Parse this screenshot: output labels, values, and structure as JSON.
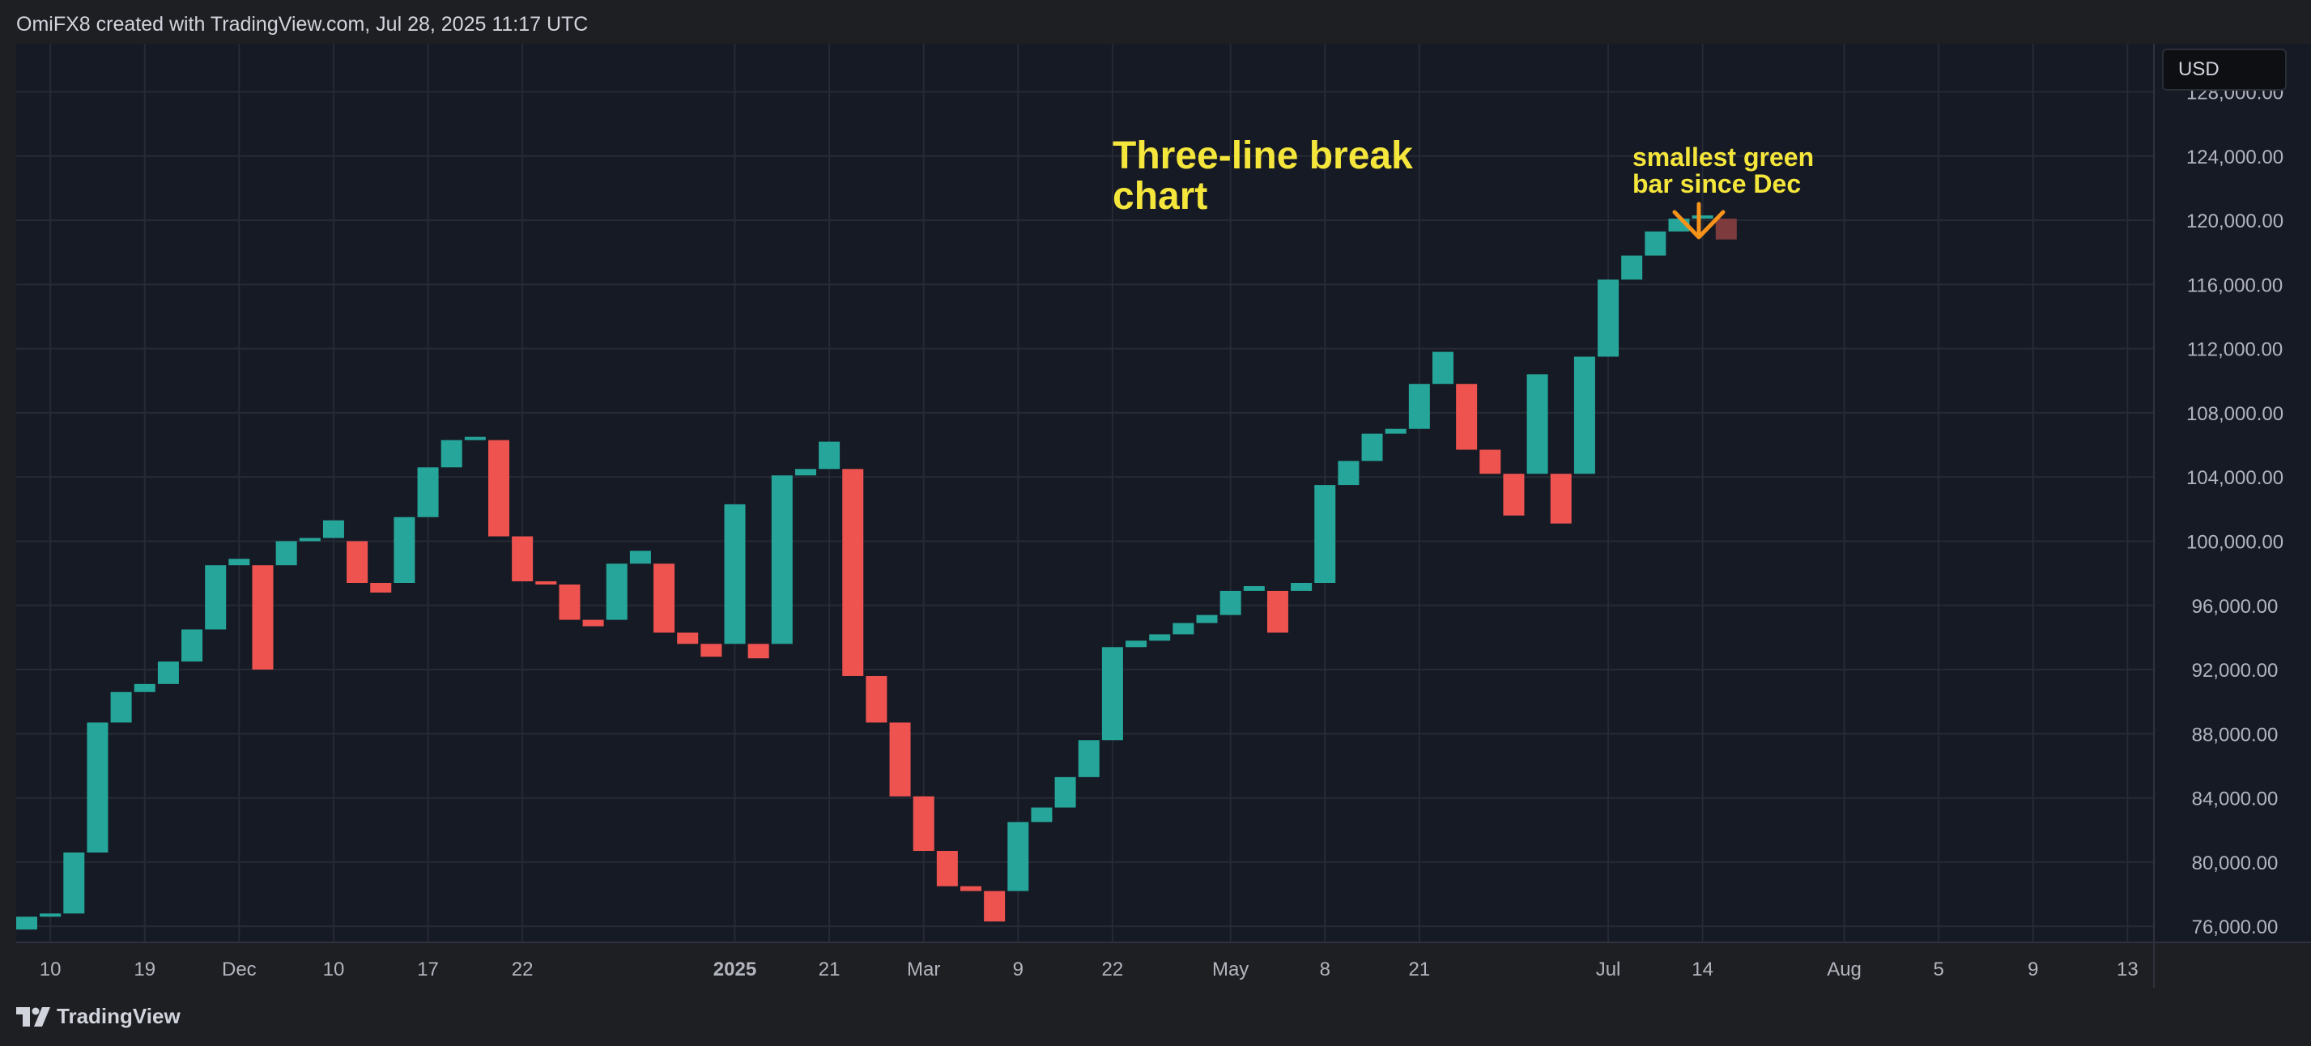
{
  "header": {
    "created_text": "OmiFX8 created with TradingView.com, Jul 28, 2025 11:17 UTC"
  },
  "toolbar": {
    "currency_label": "USD"
  },
  "footer": {
    "brand_label": "TradingView"
  },
  "annotations": {
    "title": "Three-line break\nchart",
    "smallest_bar_note": "smallest green\nbar since Dec"
  },
  "colors": {
    "background": "#161a25",
    "grid": "#262a35",
    "up": "#26a69a",
    "down": "#ef5350",
    "pending": "#7d3b3d",
    "annotation": "#f5e63c",
    "arrow": "#f7931a",
    "axis_text": "#b2b5be"
  },
  "chart_data": {
    "type": "three-line-break",
    "title": "",
    "xlabel": "",
    "ylabel": "",
    "currency": "USD",
    "ylim": [
      75000,
      131000
    ],
    "y_ticks": [
      "76,000.00",
      "80,000.00",
      "84,000.00",
      "88,000.00",
      "92,000.00",
      "96,000.00",
      "100,000.00",
      "104,000.00",
      "108,000.00",
      "112,000.00",
      "116,000.00",
      "120,000.00",
      "124,000.00",
      "128,000.00"
    ],
    "y_tick_values": [
      76000,
      80000,
      84000,
      88000,
      92000,
      96000,
      100000,
      104000,
      108000,
      112000,
      116000,
      120000,
      124000,
      128000
    ],
    "x_ticks": [
      {
        "label": "10",
        "index": 1
      },
      {
        "label": "19",
        "index": 5
      },
      {
        "label": "Dec",
        "index": 9
      },
      {
        "label": "10",
        "index": 13
      },
      {
        "label": "17",
        "index": 17
      },
      {
        "label": "22",
        "index": 21
      },
      {
        "label": "2025",
        "index": 30,
        "bold": true
      },
      {
        "label": "21",
        "index": 34
      },
      {
        "label": "Mar",
        "index": 38
      },
      {
        "label": "9",
        "index": 42
      },
      {
        "label": "22",
        "index": 46
      },
      {
        "label": "May",
        "index": 51
      },
      {
        "label": "8",
        "index": 55
      },
      {
        "label": "21",
        "index": 59
      },
      {
        "label": "Jul",
        "index": 67
      },
      {
        "label": "14",
        "index": 71
      },
      {
        "label": "Aug",
        "index": 77
      },
      {
        "label": "5",
        "index": 81
      },
      {
        "label": "9",
        "index": 85
      },
      {
        "label": "13",
        "index": 89
      }
    ],
    "bricks": [
      {
        "open": 75800,
        "close": 76600,
        "dir": "up"
      },
      {
        "open": 76600,
        "close": 76800,
        "dir": "up"
      },
      {
        "open": 76800,
        "close": 80600,
        "dir": "up"
      },
      {
        "open": 80600,
        "close": 88700,
        "dir": "up"
      },
      {
        "open": 88700,
        "close": 90600,
        "dir": "up"
      },
      {
        "open": 90600,
        "close": 91100,
        "dir": "up"
      },
      {
        "open": 91100,
        "close": 92500,
        "dir": "up"
      },
      {
        "open": 92500,
        "close": 94500,
        "dir": "up"
      },
      {
        "open": 94500,
        "close": 98500,
        "dir": "up"
      },
      {
        "open": 98500,
        "close": 98900,
        "dir": "up"
      },
      {
        "open": 98500,
        "close": 92000,
        "dir": "down"
      },
      {
        "open": 98500,
        "close": 100000,
        "dir": "up"
      },
      {
        "open": 100000,
        "close": 100200,
        "dir": "up"
      },
      {
        "open": 100200,
        "close": 101300,
        "dir": "up"
      },
      {
        "open": 100000,
        "close": 97400,
        "dir": "down"
      },
      {
        "open": 97400,
        "close": 96800,
        "dir": "down"
      },
      {
        "open": 97400,
        "close": 101500,
        "dir": "up"
      },
      {
        "open": 101500,
        "close": 104600,
        "dir": "up"
      },
      {
        "open": 104600,
        "close": 106300,
        "dir": "up"
      },
      {
        "open": 106300,
        "close": 106500,
        "dir": "up"
      },
      {
        "open": 106300,
        "close": 100300,
        "dir": "down"
      },
      {
        "open": 100300,
        "close": 97500,
        "dir": "down"
      },
      {
        "open": 97500,
        "close": 97300,
        "dir": "down"
      },
      {
        "open": 97300,
        "close": 95100,
        "dir": "down"
      },
      {
        "open": 95100,
        "close": 94700,
        "dir": "down"
      },
      {
        "open": 95100,
        "close": 98600,
        "dir": "up"
      },
      {
        "open": 98600,
        "close": 99400,
        "dir": "up"
      },
      {
        "open": 98600,
        "close": 94300,
        "dir": "down"
      },
      {
        "open": 94300,
        "close": 93600,
        "dir": "down"
      },
      {
        "open": 93600,
        "close": 92800,
        "dir": "down"
      },
      {
        "open": 93600,
        "close": 102300,
        "dir": "up"
      },
      {
        "open": 93600,
        "close": 92700,
        "dir": "down"
      },
      {
        "open": 93600,
        "close": 104100,
        "dir": "up"
      },
      {
        "open": 104100,
        "close": 104500,
        "dir": "up"
      },
      {
        "open": 104500,
        "close": 106200,
        "dir": "up"
      },
      {
        "open": 104500,
        "close": 91600,
        "dir": "down"
      },
      {
        "open": 91600,
        "close": 88700,
        "dir": "down"
      },
      {
        "open": 88700,
        "close": 84100,
        "dir": "down"
      },
      {
        "open": 84100,
        "close": 80700,
        "dir": "down"
      },
      {
        "open": 80700,
        "close": 78500,
        "dir": "down"
      },
      {
        "open": 78500,
        "close": 78200,
        "dir": "down"
      },
      {
        "open": 78200,
        "close": 76300,
        "dir": "down"
      },
      {
        "open": 78200,
        "close": 82500,
        "dir": "up"
      },
      {
        "open": 82500,
        "close": 83400,
        "dir": "up"
      },
      {
        "open": 83400,
        "close": 85300,
        "dir": "up"
      },
      {
        "open": 85300,
        "close": 87600,
        "dir": "up"
      },
      {
        "open": 87600,
        "close": 93400,
        "dir": "up"
      },
      {
        "open": 93400,
        "close": 93800,
        "dir": "up"
      },
      {
        "open": 93800,
        "close": 94200,
        "dir": "up"
      },
      {
        "open": 94200,
        "close": 94900,
        "dir": "up"
      },
      {
        "open": 94900,
        "close": 95400,
        "dir": "up"
      },
      {
        "open": 95400,
        "close": 96900,
        "dir": "up"
      },
      {
        "open": 96900,
        "close": 97200,
        "dir": "up"
      },
      {
        "open": 96900,
        "close": 94300,
        "dir": "down"
      },
      {
        "open": 96900,
        "close": 97400,
        "dir": "up"
      },
      {
        "open": 97400,
        "close": 103500,
        "dir": "up"
      },
      {
        "open": 103500,
        "close": 105000,
        "dir": "up"
      },
      {
        "open": 105000,
        "close": 106700,
        "dir": "up"
      },
      {
        "open": 106700,
        "close": 107000,
        "dir": "up"
      },
      {
        "open": 107000,
        "close": 109800,
        "dir": "up"
      },
      {
        "open": 109800,
        "close": 111800,
        "dir": "up"
      },
      {
        "open": 109800,
        "close": 105700,
        "dir": "down"
      },
      {
        "open": 105700,
        "close": 104200,
        "dir": "down"
      },
      {
        "open": 104200,
        "close": 101600,
        "dir": "down"
      },
      {
        "open": 104200,
        "close": 110400,
        "dir": "up"
      },
      {
        "open": 104200,
        "close": 101100,
        "dir": "down"
      },
      {
        "open": 104200,
        "close": 111500,
        "dir": "up"
      },
      {
        "open": 111500,
        "close": 116300,
        "dir": "up"
      },
      {
        "open": 116300,
        "close": 117800,
        "dir": "up"
      },
      {
        "open": 117800,
        "close": 119300,
        "dir": "up"
      },
      {
        "open": 119300,
        "close": 120100,
        "dir": "up"
      },
      {
        "open": 120100,
        "close": 120300,
        "dir": "up"
      },
      {
        "open": 120100,
        "close": 118800,
        "dir": "pending"
      }
    ]
  }
}
